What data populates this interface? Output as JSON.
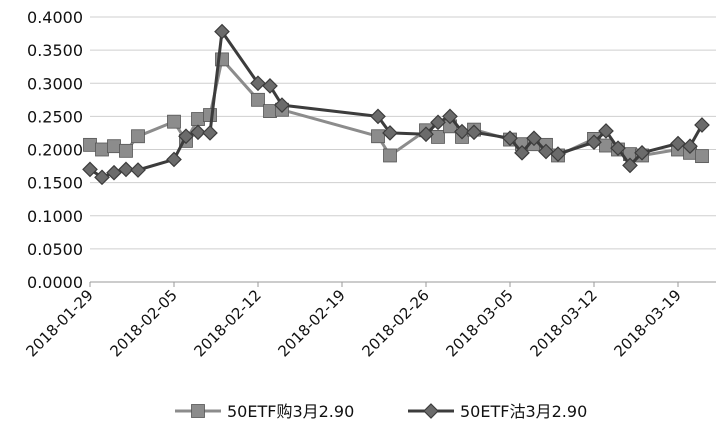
{
  "chart_data": {
    "type": "line",
    "title": "",
    "xlabel": "",
    "ylabel": "",
    "ylim": [
      0,
      0.4
    ],
    "y_ticks": [
      "0.0000",
      "0.0500",
      "0.1000",
      "0.1500",
      "0.2000",
      "0.2500",
      "0.3000",
      "0.3500",
      "0.4000"
    ],
    "x_ticks": [
      "2018-01-29",
      "2018-02-05",
      "2018-02-12",
      "2018-02-19",
      "2018-02-26",
      "2018-03-05",
      "2018-03-12",
      "2018-03-19"
    ],
    "grid": "horizontal",
    "legend_position": "bottom",
    "series": [
      {
        "name": "50ETF购3月2.90",
        "color": "#8c8c8c",
        "marker": "square",
        "points": [
          [
            "2018-01-29",
            0.207
          ],
          [
            "2018-01-30",
            0.2
          ],
          [
            "2018-01-31",
            0.205
          ],
          [
            "2018-02-01",
            0.198
          ],
          [
            "2018-02-02",
            0.22
          ],
          [
            "2018-02-05",
            0.242
          ],
          [
            "2018-02-06",
            0.213
          ],
          [
            "2018-02-07",
            0.246
          ],
          [
            "2018-02-08",
            0.252
          ],
          [
            "2018-02-09",
            0.336
          ],
          [
            "2018-02-12",
            0.275
          ],
          [
            "2018-02-13",
            0.258
          ],
          [
            "2018-02-14",
            0.26
          ],
          [
            "2018-02-22",
            0.22
          ],
          [
            "2018-02-23",
            0.191
          ],
          [
            "2018-02-26",
            0.229
          ],
          [
            "2018-02-27",
            0.219
          ],
          [
            "2018-02-28",
            0.235
          ],
          [
            "2018-03-01",
            0.219
          ],
          [
            "2018-03-02",
            0.23
          ],
          [
            "2018-03-05",
            0.215
          ],
          [
            "2018-03-06",
            0.208
          ],
          [
            "2018-03-07",
            0.208
          ],
          [
            "2018-03-08",
            0.207
          ],
          [
            "2018-03-09",
            0.191
          ],
          [
            "2018-03-12",
            0.216
          ],
          [
            "2018-03-13",
            0.206
          ],
          [
            "2018-03-14",
            0.2
          ],
          [
            "2018-03-15",
            0.193
          ],
          [
            "2018-03-16",
            0.191
          ],
          [
            "2018-03-19",
            0.2
          ],
          [
            "2018-03-20",
            0.195
          ],
          [
            "2018-03-21",
            0.19
          ]
        ]
      },
      {
        "name": "50ETF沽3月2.90",
        "color": "#3c3c3c",
        "marker": "diamond",
        "points": [
          [
            "2018-01-29",
            0.17
          ],
          [
            "2018-01-30",
            0.158
          ],
          [
            "2018-01-31",
            0.165
          ],
          [
            "2018-02-01",
            0.17
          ],
          [
            "2018-02-02",
            0.169
          ],
          [
            "2018-02-05",
            0.185
          ],
          [
            "2018-02-06",
            0.22
          ],
          [
            "2018-02-07",
            0.226
          ],
          [
            "2018-02-08",
            0.225
          ],
          [
            "2018-02-09",
            0.378
          ],
          [
            "2018-02-12",
            0.3
          ],
          [
            "2018-02-13",
            0.296
          ],
          [
            "2018-02-14",
            0.267
          ],
          [
            "2018-02-22",
            0.25
          ],
          [
            "2018-02-23",
            0.225
          ],
          [
            "2018-02-26",
            0.223
          ],
          [
            "2018-02-27",
            0.241
          ],
          [
            "2018-02-28",
            0.25
          ],
          [
            "2018-03-01",
            0.227
          ],
          [
            "2018-03-02",
            0.226
          ],
          [
            "2018-03-05",
            0.217
          ],
          [
            "2018-03-06",
            0.195
          ],
          [
            "2018-03-07",
            0.217
          ],
          [
            "2018-03-08",
            0.197
          ],
          [
            "2018-03-09",
            0.193
          ],
          [
            "2018-03-12",
            0.211
          ],
          [
            "2018-03-13",
            0.228
          ],
          [
            "2018-03-14",
            0.202
          ],
          [
            "2018-03-15",
            0.176
          ],
          [
            "2018-03-16",
            0.195
          ],
          [
            "2018-03-19",
            0.209
          ],
          [
            "2018-03-20",
            0.205
          ],
          [
            "2018-03-21",
            0.237
          ]
        ]
      }
    ]
  }
}
